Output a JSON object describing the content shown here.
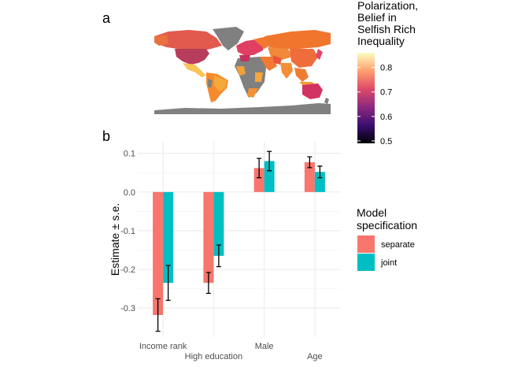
{
  "panels": {
    "a": "a",
    "b": "b"
  },
  "map": {
    "legend_title_lines": [
      "Polarization,",
      "Belief in",
      "Selfish Rich",
      "Inequality"
    ],
    "scale_ticks": [
      "0.8",
      "0.7",
      "0.6",
      "0.5"
    ],
    "scale_values": [
      0.8,
      0.7,
      0.6,
      0.5
    ],
    "scale_range": [
      0.49,
      0.86
    ],
    "colors": {
      "no_data": "#808080",
      "gradient": [
        "#000004",
        "#3b0f70",
        "#8c2981",
        "#de4968",
        "#fe9f6d",
        "#fcfdbf"
      ]
    }
  },
  "chart_data": {
    "type": "bar",
    "categories": [
      "Income rank",
      "High education",
      "Male",
      "Age"
    ],
    "series": [
      {
        "name": "separate",
        "color": "#F8766D",
        "values": [
          -0.318,
          -0.235,
          0.062,
          0.077
        ],
        "se": [
          0.042,
          0.027,
          0.025,
          0.014
        ]
      },
      {
        "name": "joint",
        "color": "#00BFC4",
        "values": [
          -0.235,
          -0.165,
          0.08,
          0.052
        ],
        "se": [
          0.045,
          0.028,
          0.025,
          0.015
        ]
      }
    ],
    "ylabel": "Estimate ± s.e.",
    "yticks": [
      0.1,
      0.0,
      -0.1,
      -0.2,
      -0.3
    ],
    "ytick_labels": [
      "0.1",
      "0.0",
      "-0.1",
      "-0.2",
      "-0.3"
    ],
    "ylim": [
      -0.375,
      0.13
    ],
    "grid": true,
    "legend": {
      "title_lines": [
        "Model",
        "specification"
      ],
      "placement": "right"
    }
  }
}
